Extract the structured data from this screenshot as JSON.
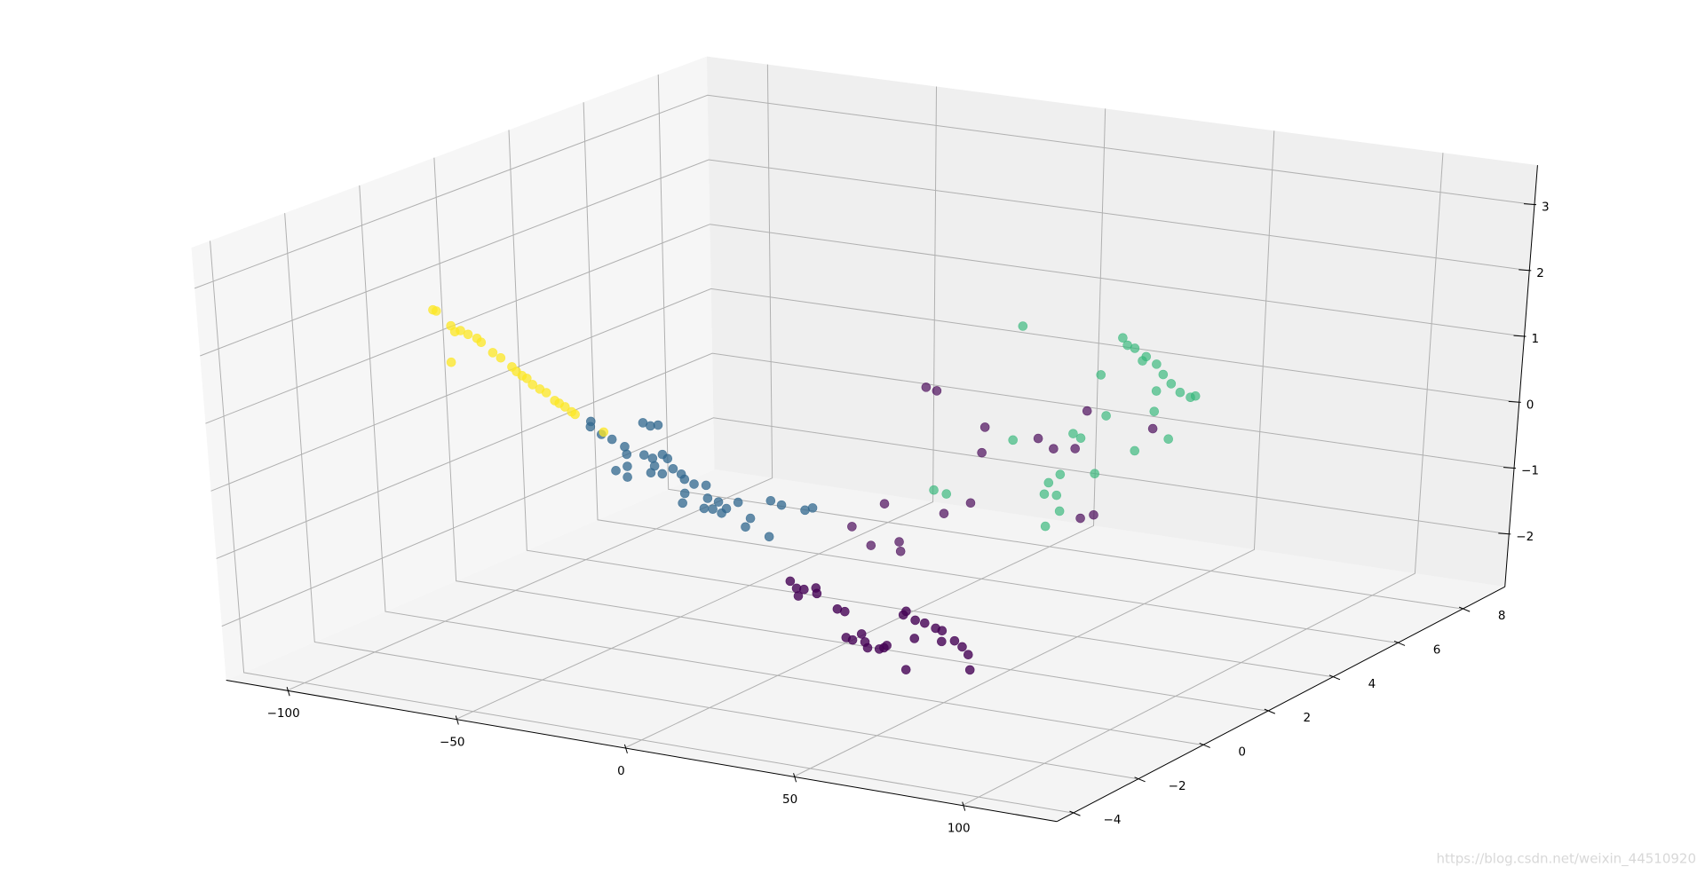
{
  "chart_data": {
    "type": "scatter3d",
    "xlim": [
      -118,
      128
    ],
    "ylim": [
      -4.5,
      9.3
    ],
    "zlim": [
      -2.8,
      3.6
    ],
    "xticks": [
      {
        "value": -100,
        "label": "−100"
      },
      {
        "value": -50,
        "label": "−50"
      },
      0,
      50,
      100
    ],
    "yticks": [
      {
        "value": -4,
        "label": "−4"
      },
      {
        "value": -2,
        "label": "−2"
      },
      0,
      2,
      4,
      6,
      8
    ],
    "zticks": [
      {
        "value": -2,
        "label": "−2"
      },
      {
        "value": -1,
        "label": "−1"
      },
      0,
      1,
      2,
      3
    ],
    "grid": true,
    "series": [
      {
        "color": "#440154",
        "x": [
          4.6,
          7.8,
          22.2,
          38.2,
          42.8,
          52.9,
          72.6,
          54.9,
          50.9,
          17.7,
          9.6,
          21.2,
          -8.4,
          -18.4,
          -12.7,
          -4.1,
          -3.7,
          49.3,
          26.3,
          28.1,
          30.3,
          33.9,
          34.1,
          28.5,
          40,
          42.2,
          42.2,
          44.1,
          46.9,
          47.8,
          48.5,
          53.4,
          54.3,
          59.7,
          60.6,
          63.2,
          66,
          69.2,
          71.1,
          62.7,
          70.8,
          74.7,
          76.9,
          78.6,
          78.9,
          59.7,
          52
        ],
        "y": [
          4,
          4,
          4,
          4,
          4,
          4,
          4,
          4,
          4,
          4,
          4,
          4,
          4,
          4,
          4,
          4,
          4,
          4,
          -2,
          -2,
          -2,
          -2,
          -2,
          -2,
          -2,
          -2,
          -2,
          -2,
          -2,
          -2,
          -2,
          -2,
          -2,
          -2,
          -2,
          -2,
          -2,
          -2,
          -2,
          -2,
          -2,
          -2,
          -2,
          -2,
          -2,
          -2,
          -2
        ],
        "z": [
          0.6,
          0.57,
          0.13,
          0.08,
          -0.04,
          0.6,
          0.48,
          -0.94,
          -1.02,
          -1.04,
          -1.26,
          -0.26,
          -1.25,
          -1.67,
          -1.91,
          -1.79,
          -1.93,
          0.01,
          -0.73,
          -0.82,
          -0.82,
          -0.77,
          -0.85,
          -0.93,
          -1.03,
          -1.05,
          -1.43,
          -1.45,
          -1.34,
          -1.45,
          -1.53,
          -1.49,
          -1.45,
          -0.96,
          -0.9,
          -1.01,
          -1.03,
          -1.08,
          -1.1,
          -1.28,
          -1.26,
          -1.22,
          -1.29,
          -1.39,
          -1.61,
          -1.76,
          -1.52
        ]
      },
      {
        "color": "#31688e",
        "x": [
          -52.8,
          -53,
          -37.2,
          -35,
          -32.7,
          -49.8,
          -46.7,
          -43,
          -42.5,
          -37.3,
          -34.8,
          -31.8,
          -30.3,
          -34.3,
          -32.1,
          -28.8,
          -26.4,
          -35.5,
          -42.5,
          -46,
          -42.6,
          -25.5,
          -22.7,
          -19.1,
          -25.6,
          -18.8,
          -15.6,
          -20,
          -17.4,
          -13.3,
          -9.7,
          -14.8,
          -6.2,
          -7.8,
          -0.8,
          0.1,
          3.3,
          10.3,
          12.6,
          -26.4
        ],
        "y": [
          0,
          0,
          0,
          0,
          0,
          0,
          0,
          0,
          0,
          0,
          0,
          0,
          0,
          0,
          0,
          0,
          0,
          0,
          0,
          0,
          0,
          0,
          0,
          0,
          0,
          0,
          0,
          0,
          0,
          0,
          0,
          0,
          0,
          0,
          0,
          0,
          0,
          0,
          0,
          0
        ],
        "z": [
          0.56,
          0.48,
          0.66,
          0.63,
          0.66,
          0.39,
          0.34,
          0.26,
          0.15,
          0.18,
          0.15,
          0.23,
          0.18,
          0.04,
          -0.06,
          0.04,
          -0.02,
          -0.07,
          -0.03,
          -0.12,
          -0.19,
          -0.09,
          -0.14,
          -0.13,
          -0.3,
          -0.32,
          -0.35,
          -0.48,
          -0.47,
          -0.43,
          -0.31,
          -0.51,
          -0.52,
          -0.66,
          -0.75,
          -0.21,
          -0.25,
          -0.27,
          -0.22,
          -0.45
        ]
      },
      {
        "color": "#35b779",
        "x": [
          63.5,
          64.9,
          67.1,
          70.5,
          73.6,
          75.6,
          78,
          80.7,
          83.8,
          85.3,
          73.6,
          57,
          69.4,
          33.7,
          58.6,
          48.7,
          51,
          30.6,
          73,
          77.3,
          67.2,
          44.8,
          41.3,
          43.7,
          40,
          44.6,
          40.3,
          55.2,
          6.6,
          10.4
        ],
        "y": [
          4,
          4,
          4,
          4,
          4,
          4,
          4,
          4,
          4,
          4,
          4,
          4,
          4,
          4,
          4,
          4,
          4,
          4,
          4,
          4,
          4,
          4,
          4,
          4,
          4,
          4,
          4,
          4,
          4,
          4
        ],
        "z": [
          1.77,
          1.67,
          1.64,
          1.54,
          1.45,
          1.31,
          1.19,
          1.08,
          1.03,
          1.06,
          1.05,
          1.17,
          1.47,
          1.73,
          0.57,
          0.23,
          0.18,
          0,
          0.74,
          0.36,
          0.11,
          -0.41,
          -0.56,
          -0.73,
          -0.74,
          -0.96,
          -1.22,
          -0.32,
          -0.93,
          -0.96
        ]
      },
      {
        "color": "#fde725",
        "x": [
          -98.3,
          -97.3,
          -93.2,
          -92.1,
          -90.4,
          -88.2,
          -85.6,
          -84.4,
          -81.1,
          -78.8,
          -75.6,
          -74.3,
          -72.7,
          -71.3,
          -69.7,
          -67.6,
          -65.7,
          -63.3,
          -62,
          -60.3,
          -58.4,
          -57.4,
          -93.7,
          -49.1
        ],
        "y": [
          0,
          0,
          0,
          0,
          0,
          0,
          0,
          0,
          0,
          0,
          0,
          0,
          0,
          0,
          0,
          0,
          0,
          0,
          0,
          0,
          0,
          0,
          0,
          0
        ],
        "z": [
          1.88,
          1.87,
          1.68,
          1.6,
          1.63,
          1.59,
          1.55,
          1.5,
          1.37,
          1.31,
          1.2,
          1.14,
          1.09,
          1.06,
          0.98,
          0.93,
          0.89,
          0.79,
          0.76,
          0.72,
          0.66,
          0.63,
          1.13,
          0.43
        ]
      }
    ]
  },
  "watermark": "https://blog.csdn.net/weixin_44510920"
}
